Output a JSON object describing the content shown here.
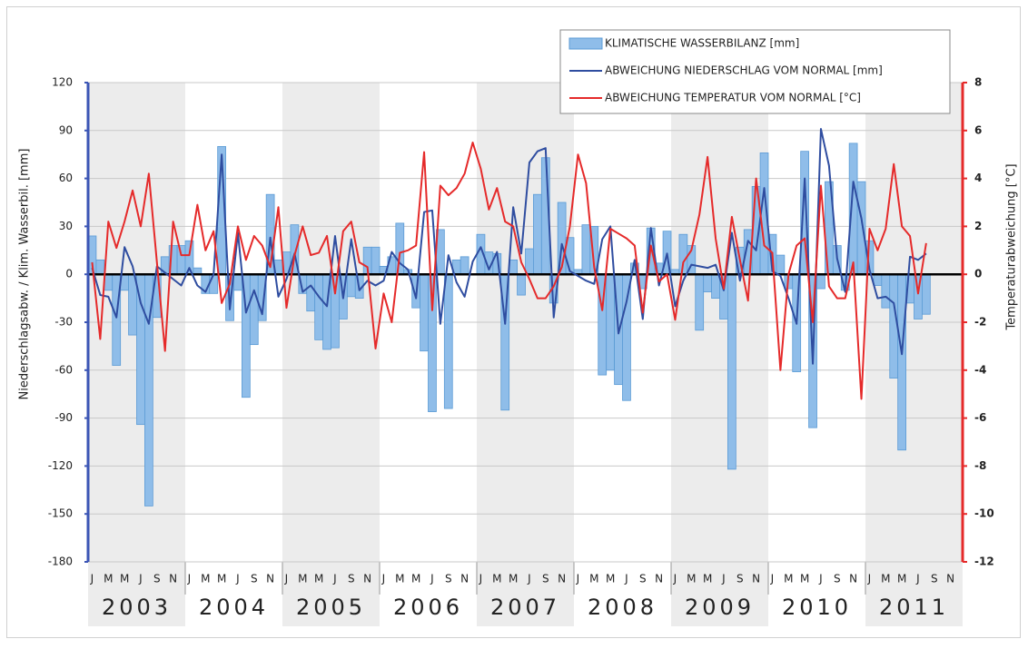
{
  "chart_data": {
    "type": "bar-line",
    "y_label": "Niederschlagsabw. / Klim. Wasserbil. [mm]",
    "y2_label": "Temperaturabweichung [°C]",
    "year_labels": [
      "2003",
      "2004",
      "2005",
      "2006",
      "2007",
      "2008",
      "2009",
      "2010",
      "2011"
    ],
    "categories": [
      "J",
      null,
      "M",
      null,
      "M",
      null,
      "J",
      null,
      "S",
      null,
      "N",
      null,
      "J",
      null,
      "M",
      null,
      "M",
      null,
      "J",
      null,
      "S",
      null,
      "N",
      null,
      "J",
      null,
      "M",
      null,
      "M",
      null,
      "J",
      null,
      "S",
      null,
      "N",
      null,
      "J",
      null,
      "M",
      null,
      "M",
      null,
      "J",
      null,
      "S",
      null,
      "N",
      null,
      "J",
      null,
      "M",
      null,
      "M",
      null,
      "J",
      null,
      "S",
      null,
      "N",
      null,
      "J",
      null,
      "M",
      null,
      "M",
      null,
      "J",
      null,
      "S",
      null,
      "N",
      null,
      "J",
      null,
      "M",
      null,
      "M",
      null,
      "J",
      null,
      "S",
      null,
      "N",
      null,
      "J",
      null,
      "M",
      null,
      "M",
      null,
      "J",
      null,
      "S",
      null,
      "N",
      null,
      "J",
      null,
      "M",
      null,
      "M",
      null,
      "J",
      null,
      "S",
      null,
      "N",
      null
    ],
    "series": [
      {
        "name": "KLIMATISCHE WASSERBILANZ [mm]",
        "kind": "bar",
        "color": "#8fbde9",
        "edge": "#5b9bd5",
        "values": [
          24,
          9,
          -10,
          -57,
          -10,
          -38,
          -94,
          -145,
          -27,
          11,
          18,
          18,
          21,
          4,
          -12,
          -12,
          80,
          -29,
          -10,
          -77,
          -44,
          -29,
          50,
          9,
          14,
          31,
          -12,
          -23,
          -41,
          -47,
          -46,
          -28,
          -14,
          -15,
          17,
          17,
          5,
          11,
          32,
          3,
          -21,
          -48,
          -86,
          28,
          -84,
          9,
          11,
          0,
          25,
          14,
          13,
          -85,
          9,
          -13,
          16,
          50,
          73,
          -18,
          45,
          23,
          3,
          31,
          30,
          -63,
          -60,
          -69,
          -79,
          7,
          -9,
          29,
          7,
          27,
          3,
          25,
          18,
          -35,
          -11,
          -15,
          -28,
          -122,
          17,
          28,
          55,
          76,
          25,
          12,
          -9,
          -61,
          77,
          -96,
          -9,
          58,
          18,
          -10,
          82,
          58,
          21,
          -7,
          -21,
          -65,
          -110,
          -18,
          -28,
          -25,
          null,
          null,
          null,
          null
        ]
      },
      {
        "name": "ABWEICHUNG NIEDERSCHLAG VOM NORMAL [mm]",
        "kind": "line",
        "color": "#2f4da0",
        "values": [
          4,
          -13,
          -14,
          -27,
          17,
          5,
          -18,
          -31,
          5,
          1,
          -3,
          -7,
          4,
          -7,
          -11,
          0,
          75,
          -22,
          26,
          -24,
          -10,
          -25,
          23,
          -14,
          -3,
          13,
          -11,
          -7,
          -14,
          -20,
          24,
          -15,
          22,
          -10,
          -4,
          -7,
          -4,
          14,
          7,
          3,
          -15,
          39,
          40,
          -31,
          12,
          -5,
          -14,
          8,
          17,
          3,
          14,
          -31,
          42,
          13,
          70,
          77,
          79,
          -27,
          19,
          2,
          -1,
          -4,
          -6,
          22,
          30,
          -37,
          -17,
          9,
          -28,
          29,
          -7,
          13,
          -20,
          -4,
          6,
          5,
          4,
          6,
          -10,
          26,
          -4,
          21,
          15,
          54,
          2,
          -1,
          -15,
          -31,
          60,
          -56,
          91,
          68,
          10,
          -11,
          58,
          35,
          3,
          -15,
          -14,
          -18,
          -50,
          11,
          9,
          13,
          null,
          null,
          null,
          null
        ]
      },
      {
        "name": "ABWEICHUNG TEMPERATUR VOM NORMAL [°C]",
        "kind": "line",
        "axis": "y2",
        "color": "#e52a2a",
        "values": [
          0.5,
          -2.7,
          2.2,
          1.1,
          2.2,
          3.5,
          2,
          4.2,
          0.5,
          -3.2,
          2.2,
          0.8,
          0.8,
          2.9,
          1,
          1.8,
          -1.2,
          -0.4,
          2,
          0.6,
          1.6,
          1.2,
          0.3,
          2.8,
          -1.4,
          0.8,
          2,
          0.8,
          0.9,
          1.6,
          -0.8,
          1.8,
          2.2,
          0.5,
          0.3,
          -3.1,
          -0.8,
          -2,
          0.9,
          1,
          1.2,
          5.1,
          -1.5,
          3.7,
          3.3,
          3.6,
          4.2,
          5.5,
          4.4,
          2.7,
          3.6,
          2.2,
          2,
          0.5,
          -0.2,
          -1,
          -1,
          -0.5,
          0.3,
          2,
          5,
          3.8,
          0.3,
          -1.5,
          1.9,
          1.7,
          1.5,
          1.2,
          -1.6,
          1.2,
          -0.3,
          0,
          -1.9,
          0.5,
          1,
          2.5,
          4.9,
          1.5,
          -0.6,
          2.4,
          0.6,
          -1.1,
          4,
          1.2,
          0.9,
          -4,
          0,
          1.2,
          1.5,
          -2,
          3.7,
          -0.5,
          -1,
          -1,
          0.5,
          -5.2,
          1.9,
          1,
          1.9,
          4.6,
          2,
          1.6,
          -0.8,
          1.3,
          null,
          null,
          null,
          null
        ]
      }
    ],
    "ylim": [
      -180,
      120
    ],
    "yticks": [
      -180,
      -150,
      -120,
      -90,
      -60,
      -30,
      0,
      30,
      60,
      90,
      120
    ],
    "y2lim": [
      -12,
      8
    ],
    "y2ticks": [
      -12,
      -10,
      -8,
      -6,
      -4,
      -2,
      0,
      2,
      4,
      6,
      8
    ],
    "grid": true,
    "legend": "top-right"
  }
}
